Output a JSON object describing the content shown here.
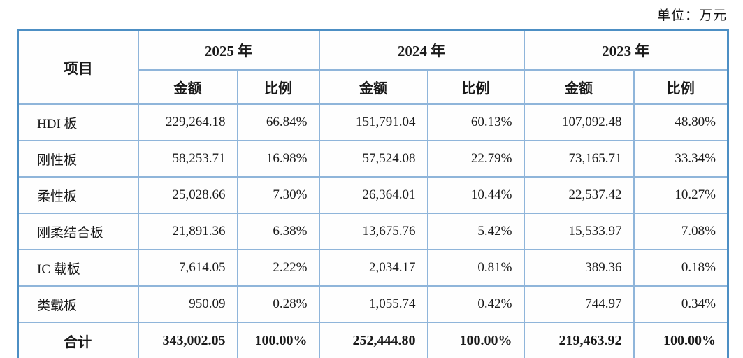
{
  "unit_label": "单位：万元",
  "colors": {
    "table_outer_border": "#4d8fc4",
    "table_grid_line": "#8fb5da",
    "text": "#1a1a1a",
    "background": "#ffffff"
  },
  "table": {
    "item_header": "项目",
    "years": [
      "2025 年",
      "2024 年",
      "2023 年"
    ],
    "amount_label": "金额",
    "ratio_label": "比例",
    "rows": [
      {
        "label": "HDI 板",
        "a2025": "229,264.18",
        "r2025": "66.84%",
        "a2024": "151,791.04",
        "r2024": "60.13%",
        "a2023": "107,092.48",
        "r2023": "48.80%"
      },
      {
        "label": "刚性板",
        "a2025": "58,253.71",
        "r2025": "16.98%",
        "a2024": "57,524.08",
        "r2024": "22.79%",
        "a2023": "73,165.71",
        "r2023": "33.34%"
      },
      {
        "label": "柔性板",
        "a2025": "25,028.66",
        "r2025": "7.30%",
        "a2024": "26,364.01",
        "r2024": "10.44%",
        "a2023": "22,537.42",
        "r2023": "10.27%"
      },
      {
        "label": "刚柔结合板",
        "a2025": "21,891.36",
        "r2025": "6.38%",
        "a2024": "13,675.76",
        "r2024": "5.42%",
        "a2023": "15,533.97",
        "r2023": "7.08%"
      },
      {
        "label": "IC 载板",
        "a2025": "7,614.05",
        "r2025": "2.22%",
        "a2024": "2,034.17",
        "r2024": "0.81%",
        "a2023": "389.36",
        "r2023": "0.18%"
      },
      {
        "label": "类载板",
        "a2025": "950.09",
        "r2025": "0.28%",
        "a2024": "1,055.74",
        "r2024": "0.42%",
        "a2023": "744.97",
        "r2023": "0.34%"
      }
    ],
    "total": {
      "label": "合计",
      "a2025": "343,002.05",
      "r2025": "100.00%",
      "a2024": "252,444.80",
      "r2024": "100.00%",
      "a2023": "219,463.92",
      "r2023": "100.00%"
    }
  }
}
